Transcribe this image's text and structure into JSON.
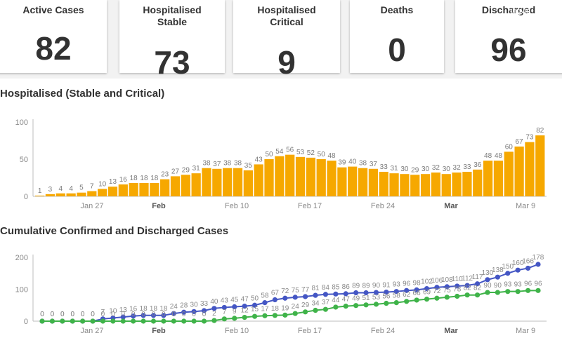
{
  "cards": [
    {
      "label": "Active Cases",
      "value": "82"
    },
    {
      "label": "Hospitalised Stable",
      "value": "73"
    },
    {
      "label": "Hospitalised Critical",
      "value": "9"
    },
    {
      "label": "Deaths",
      "value": "0"
    },
    {
      "label": "Discharged",
      "value": "96"
    }
  ],
  "overlay_text": "ringvid",
  "colors": {
    "bar": "#f6a800",
    "confirmed": "#4456c4",
    "discharged": "#3fb349",
    "axis": "#bdbdbd",
    "grid": "#e6e6e6"
  },
  "chart_data": [
    {
      "type": "bar",
      "title": "Hospitalised (Stable and Critical)",
      "xlabel": "",
      "ylabel": "",
      "ylim": [
        0,
        100
      ],
      "yticks": [
        0,
        50,
        100
      ],
      "x_ticks": [
        {
          "label": "Jan 27",
          "bold": false
        },
        {
          "label": "Feb",
          "bold": true
        },
        {
          "label": "Feb 10",
          "bold": false
        },
        {
          "label": "Feb 17",
          "bold": false
        },
        {
          "label": "Feb 24",
          "bold": false
        },
        {
          "label": "Mar",
          "bold": true
        },
        {
          "label": "Mar 9",
          "bold": false
        }
      ],
      "values": [
        1,
        3,
        4,
        4,
        5,
        7,
        10,
        13,
        16,
        18,
        18,
        18,
        23,
        27,
        29,
        31,
        38,
        37,
        38,
        38,
        35,
        43,
        50,
        54,
        56,
        53,
        52,
        50,
        48,
        39,
        40,
        38,
        37,
        33,
        31,
        30,
        29,
        30,
        32,
        30,
        32,
        33,
        36,
        48,
        48,
        60,
        67,
        73,
        82
      ]
    },
    {
      "type": "line",
      "title": "Cumulative Confirmed and Discharged Cases",
      "xlabel": "",
      "ylabel": "",
      "ylim": [
        0,
        200
      ],
      "yticks": [
        0,
        100,
        200
      ],
      "x_ticks": [
        {
          "label": "Jan 27",
          "bold": false
        },
        {
          "label": "Feb",
          "bold": true
        },
        {
          "label": "Feb 10",
          "bold": false
        },
        {
          "label": "Feb 17",
          "bold": false
        },
        {
          "label": "Feb 24",
          "bold": false
        },
        {
          "label": "Mar",
          "bold": true
        },
        {
          "label": "Mar 9",
          "bold": false
        }
      ],
      "series": [
        {
          "values": [
            0,
            0,
            0,
            0,
            0,
            0,
            7,
            10,
            13,
            16,
            18,
            18,
            18,
            24,
            28,
            30,
            33,
            40,
            43,
            45,
            47,
            50,
            58,
            67,
            72,
            75,
            77,
            81,
            84,
            85,
            86,
            89,
            89,
            90,
            91,
            93,
            96,
            98,
            102,
            106,
            108,
            110,
            112,
            117,
            130,
            138,
            150,
            160,
            166,
            178
          ]
        },
        {
          "values": [
            0,
            0,
            0,
            0,
            0,
            0,
            0,
            0,
            0,
            0,
            0,
            0,
            0,
            0,
            0,
            0,
            0,
            2,
            7,
            9,
            12,
            15,
            17,
            18,
            19,
            24,
            29,
            34,
            37,
            44,
            47,
            49,
            51,
            53,
            56,
            58,
            62,
            66,
            69,
            72,
            75,
            78,
            82,
            82,
            90,
            90,
            93,
            93,
            96,
            96
          ]
        }
      ]
    }
  ]
}
